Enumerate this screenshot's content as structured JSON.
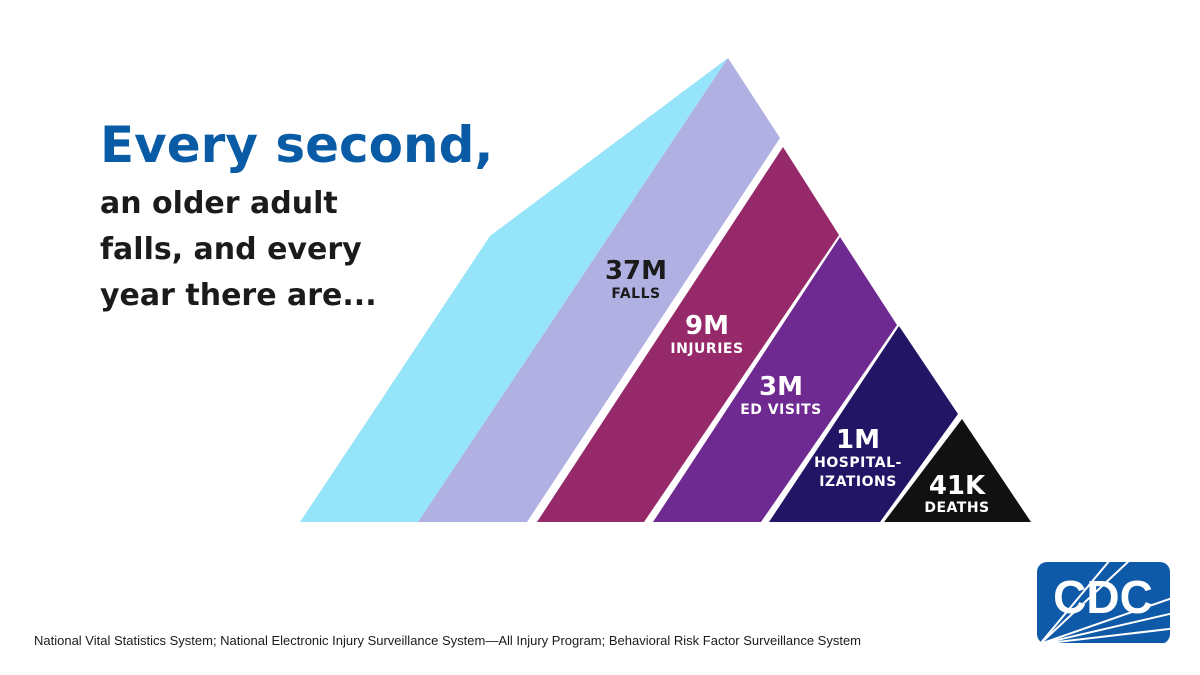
{
  "headline": "Every second,",
  "subline": [
    "an older adult",
    "falls, and every",
    "year there are..."
  ],
  "tiers": [
    {
      "value": "37M",
      "label": [
        "FALLS"
      ],
      "color": "#b0b0e3"
    },
    {
      "value": "9M",
      "label": [
        "INJURIES"
      ],
      "color": "#96296a"
    },
    {
      "value": "3M",
      "label": [
        "ED VISITS"
      ],
      "color": "#6e2a91"
    },
    {
      "value": "1M",
      "label": [
        "HOSPITAL-",
        "IZATIONS"
      ],
      "color": "#221566"
    },
    {
      "value": "41K",
      "label": [
        "DEATHS"
      ],
      "color": "#111111"
    }
  ],
  "left_face_color": "#95e4fa",
  "source": "National Vital Statistics System; National Electronic Injury Surveillance System—All Injury Program; Behavioral Risk Factor Surveillance System",
  "logo": {
    "text": "CDC",
    "color": "#0f5aa8"
  }
}
